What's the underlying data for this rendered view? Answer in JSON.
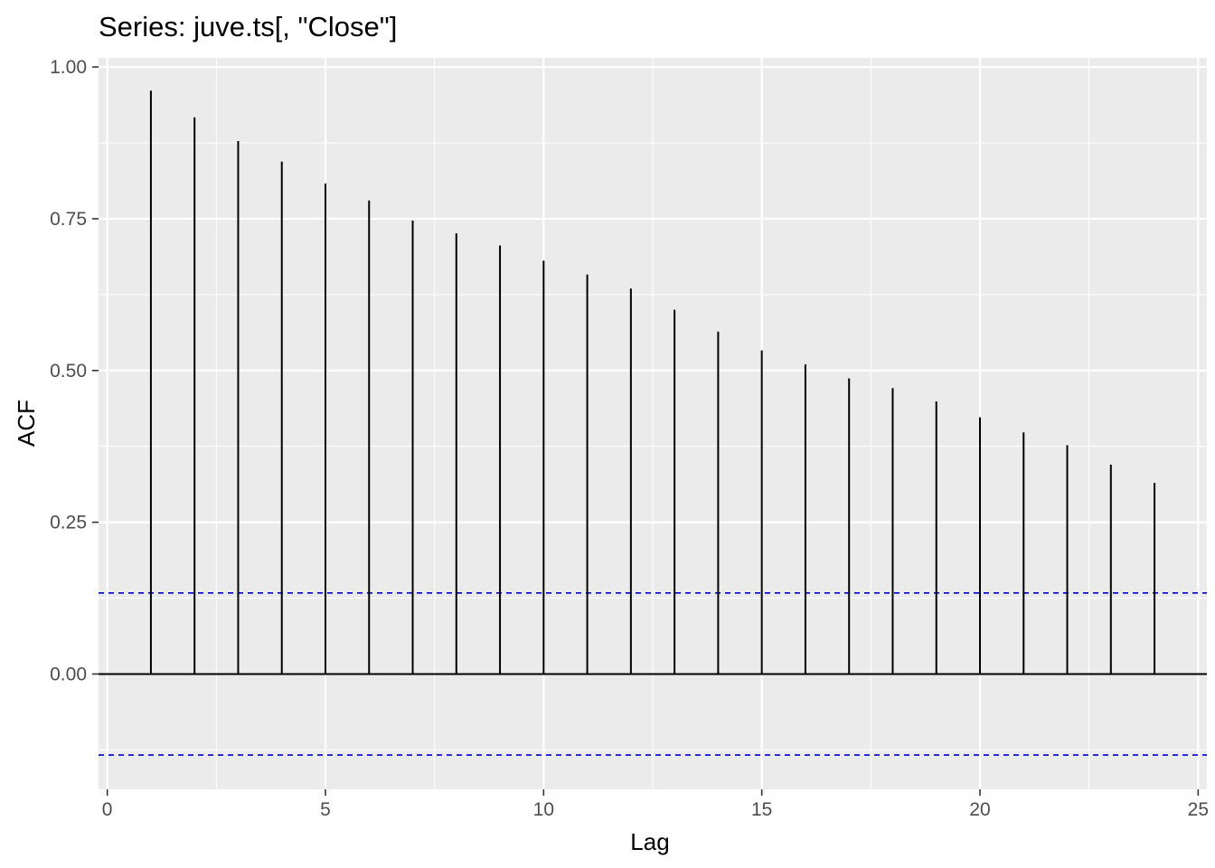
{
  "chart_data": {
    "type": "bar",
    "title": "Series: juve.ts[, \"Close\"]",
    "xlabel": "Lag",
    "ylabel": "ACF",
    "x": [
      1,
      2,
      3,
      4,
      5,
      6,
      7,
      8,
      9,
      10,
      11,
      12,
      13,
      14,
      15,
      16,
      17,
      18,
      19,
      20,
      21,
      22,
      23,
      24
    ],
    "values": [
      0.961,
      0.917,
      0.878,
      0.844,
      0.808,
      0.78,
      0.747,
      0.726,
      0.706,
      0.681,
      0.658,
      0.635,
      0.6,
      0.564,
      0.533,
      0.51,
      0.487,
      0.471,
      0.449,
      0.423,
      0.398,
      0.377,
      0.345,
      0.315
    ],
    "confidence_bounds": [
      0.1335,
      -0.1335
    ],
    "xlim": [
      -0.2,
      25.2
    ],
    "ylim": [
      -0.19,
      1.015
    ],
    "x_ticks": [
      0,
      5,
      10,
      15,
      20,
      25
    ],
    "x_tick_labels": [
      "0",
      "5",
      "10",
      "15",
      "20",
      "25"
    ],
    "y_ticks": [
      0.0,
      0.25,
      0.5,
      0.75,
      1.0
    ],
    "y_tick_labels": [
      "0.00",
      "0.25",
      "0.50",
      "0.75",
      "1.00"
    ],
    "grid": true,
    "legend": "none",
    "colors": {
      "panel_background": "#ebebeb",
      "grid": "#ffffff",
      "bars": "#000000",
      "confidence_lines": "#0000cc",
      "tick_labels": "#4d4d4d"
    }
  }
}
